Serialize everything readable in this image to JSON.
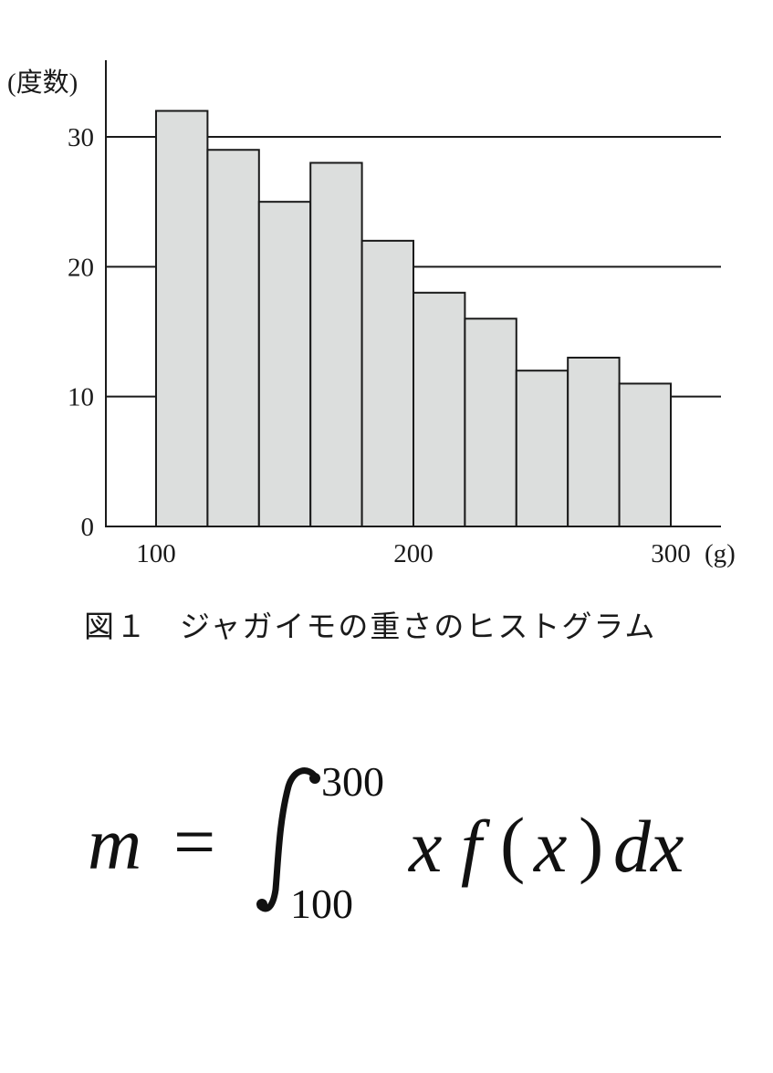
{
  "chart_data": {
    "type": "bar",
    "ylabel": "(度数)",
    "xunit": "(g)",
    "x_ticks": [
      "100",
      "200",
      "300"
    ],
    "y_ticks": [
      "0",
      "10",
      "20",
      "30"
    ],
    "bin_edges": [
      100,
      120,
      140,
      160,
      180,
      200,
      220,
      240,
      260,
      280,
      300
    ],
    "values": [
      32,
      29,
      25,
      28,
      22,
      18,
      16,
      12,
      13,
      11
    ],
    "xlim": [
      80,
      320
    ],
    "ylim": [
      0,
      36
    ],
    "gridlines_y": [
      10,
      20,
      30
    ],
    "bar_color": "#dcdedd",
    "bar_edge_color": "#1a1a1a"
  },
  "caption": {
    "label": "図１",
    "text": "ジャガイモの重さのヒストグラム"
  },
  "formula": {
    "lhs": "m",
    "equals": "=",
    "upper": "300",
    "lower": "100",
    "integrand": "x f",
    "lparen": "(",
    "var": "x",
    "rparen": ")",
    "differential": "dx"
  }
}
